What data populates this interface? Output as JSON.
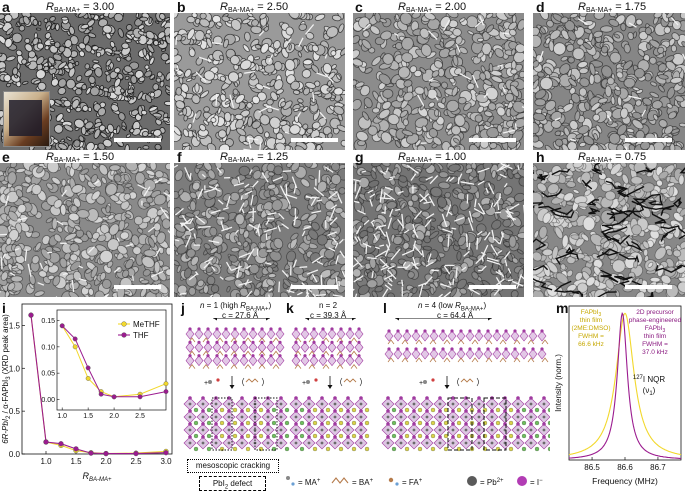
{
  "panels": {
    "a": {
      "letter": "a",
      "R": "R",
      "sub": "BA-MA+",
      "value": " = 3.00"
    },
    "b": {
      "letter": "b",
      "R": "R",
      "sub": "BA-MA+",
      "value": " = 2.50"
    },
    "c": {
      "letter": "c",
      "R": "R",
      "sub": "BA-MA+",
      "value": " = 2.00"
    },
    "d": {
      "letter": "d",
      "R": "R",
      "sub": "BA-MA+",
      "value": " = 1.75"
    },
    "e": {
      "letter": "e",
      "R": "R",
      "sub": "BA-MA+",
      "value": " = 1.50"
    },
    "f": {
      "letter": "f",
      "R": "R",
      "sub": "BA-MA+",
      "value": " = 1.25"
    },
    "g": {
      "letter": "g",
      "R": "R",
      "sub": "BA-MA+",
      "value": " = 1.00"
    },
    "h": {
      "letter": "h",
      "R": "R",
      "sub": "BA-MA+",
      "value": " = 0.75"
    },
    "i": {
      "letter": "i"
    },
    "j": {
      "letter": "j",
      "title": "n = 1 (high R",
      "title_sub": "BA-MA+",
      "title_end": ")",
      "c": "c = 27.6 Å"
    },
    "k": {
      "letter": "k",
      "title": "n = 2",
      "c": "c = 39.3 Å"
    },
    "l": {
      "letter": "l",
      "title": "n = 4 (low R",
      "title_sub": "BA-MA+",
      "title_end": ")",
      "c": "c = 64.4 Å"
    },
    "m": {
      "letter": "m"
    }
  },
  "legend_j": {
    "mesoscopic": "mesoscopic cracking",
    "defect": "PbI",
    "defect_sub": "2",
    "defect_end": " defect"
  },
  "species_legend": {
    "ma": "= MA",
    "ba": "= BA",
    "fa": "= FA",
    "pb": "= Pb",
    "pb_sup": "2+",
    "i": "= I",
    "sup_plus": "+",
    "sup_minus": "−"
  },
  "chart_i": {
    "ylabel": "6R-PbI",
    "ylabel_sub": "2",
    "ylabel_mid": " / α-FAPbI",
    "ylabel_sub2": "3",
    "ylabel_end": " (XRD peak area)",
    "xlabel_R": "R",
    "xlabel_sub": "BA-MA+",
    "legend": [
      "MeTHF",
      "THF"
    ],
    "colors": {
      "MeTHF": "#f2d82c",
      "THF": "#9b1b8f"
    }
  },
  "chart_m": {
    "ylabel": "Intensity (norm.)",
    "xlabel": "Frequency (MHz)",
    "left_text": [
      "FAPbI",
      "thin film",
      "(2ME:DMSO)",
      "FWHM =",
      "66.6 kHz"
    ],
    "right_text": [
      "2D precursor",
      "phase-engineered",
      "FAPbI",
      "thin film",
      "FWHM =",
      "37.0 kHz"
    ],
    "nqr": "I NQR",
    "nqr_sup": "127",
    "nqr_nu": "(ν",
    "nqr_nu_sub": "1",
    "nqr_nu_end": ")",
    "sub3": "3"
  },
  "chart_data": [
    {
      "type": "line",
      "panel": "i",
      "xlabel": "R_BA-MA+",
      "ylabel": "6R-PbI2 / α-FAPbI3 (XRD peak area)",
      "xlim": [
        0.6,
        3.1
      ],
      "ylim": [
        0,
        1.75
      ],
      "xticks": [
        1.0,
        1.5,
        2.0,
        2.5,
        3.0
      ],
      "yticks": [
        0.0,
        0.5,
        1.0,
        1.5
      ],
      "series": [
        {
          "name": "MeTHF",
          "x": [
            0.75,
            1.0,
            1.25,
            1.5,
            1.75,
            2.0,
            2.5,
            3.0
          ],
          "y": [
            1.62,
            0.14,
            0.1,
            0.04,
            0.015,
            0.005,
            0.01,
            0.03
          ]
        },
        {
          "name": "THF",
          "x": [
            0.75,
            1.0,
            1.25,
            1.5,
            1.75,
            2.0,
            2.5,
            3.0
          ],
          "y": [
            1.62,
            0.14,
            0.12,
            0.06,
            0.01,
            0.005,
            0.005,
            0.015
          ]
        }
      ],
      "inset": {
        "xlim": [
          0.9,
          3.0
        ],
        "ylim": [
          -0.02,
          0.17
        ],
        "xticks": [
          1.0,
          1.5,
          2.0,
          2.5
        ],
        "yticks": [
          0.0,
          0.05,
          0.1,
          0.15
        ],
        "series": [
          {
            "name": "MeTHF",
            "x": [
              1.0,
              1.25,
              1.5,
              1.75,
              2.0,
              2.5,
              3.0
            ],
            "y": [
              0.14,
              0.1,
              0.04,
              0.015,
              0.005,
              0.01,
              0.03
            ]
          },
          {
            "name": "THF",
            "x": [
              1.0,
              1.25,
              1.5,
              1.75,
              2.0,
              2.5,
              3.0
            ],
            "y": [
              0.14,
              0.115,
              0.06,
              0.01,
              0.005,
              0.005,
              0.015
            ]
          }
        ]
      }
    },
    {
      "type": "line",
      "panel": "m",
      "xlabel": "Frequency (MHz)",
      "ylabel": "Intensity (norm.)",
      "xlim": [
        86.43,
        86.77
      ],
      "ylim": [
        0,
        1.05
      ],
      "xticks": [
        86.5,
        86.6,
        86.7
      ],
      "series": [
        {
          "name": "FAPbI3 thin film (2ME:DMSO)",
          "center": 86.6,
          "fwhm": 0.0666
        },
        {
          "name": "2D precursor phase-engineered FAPbI3 thin film",
          "center": 86.592,
          "fwhm": 0.037
        }
      ]
    }
  ]
}
